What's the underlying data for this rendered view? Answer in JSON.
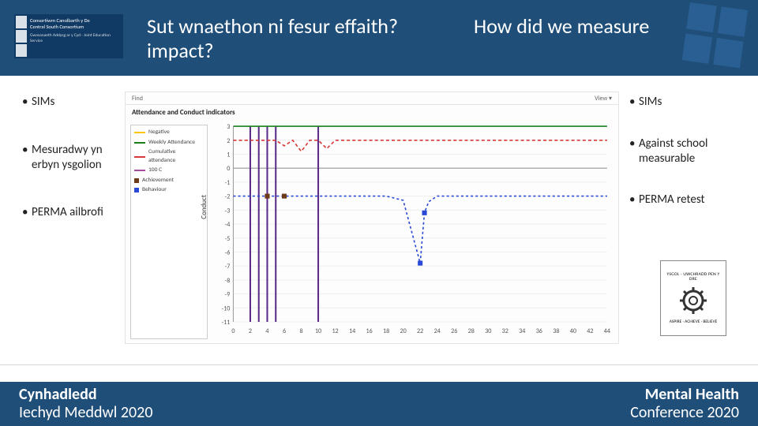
{
  "header": {
    "logo": {
      "line1": "Consortiwm Canolbarth y De",
      "line2": "Central South Consortium",
      "sub": "Gwasanaeth Addysg ar y Cyd · Joint Education Service"
    },
    "title_cy": "Sut wnaethon ni fesur effaith? impact?",
    "title_en": "How did we measure",
    "squares_color": "#2a5f93",
    "bg": "#1f4e79"
  },
  "left_bullets": [
    "SIMs",
    "Mesuradwy yn erbyn ysgolion",
    "PERMA ailbrofi"
  ],
  "right_bullets": [
    "SIMs",
    "Against school measurable",
    "PERMA retest"
  ],
  "chart": {
    "toolbar": {
      "left": "Find",
      "right": "View ▾"
    },
    "title": "Attendance and Conduct indicators",
    "ylabel": "Conduct",
    "type": "line",
    "xlim": [
      0,
      44
    ],
    "xtick_step": 2,
    "ylim": [
      -11,
      3
    ],
    "ytick_step": 1,
    "background_color": "#ffffff",
    "grid_color": "#eeeeee",
    "line_width": 1.6,
    "colors": {
      "negative": "#f8c300",
      "weekly_att": "#1a7f1a",
      "cum_att": "#d63a3a",
      "100c": "#a34aa3",
      "achieve": "#6b3b1a",
      "behave": "#2a4ad6"
    },
    "legend": [
      {
        "label": "Negative",
        "key": "negative",
        "style": "line"
      },
      {
        "label": "Weekly Attendance",
        "key": "weekly_att",
        "style": "line"
      },
      {
        "label": "Cumulative attendance",
        "key": "cum_att",
        "style": "line"
      },
      {
        "label": "100 C",
        "key": "100c",
        "style": "line"
      },
      {
        "label": "Achievement",
        "key": "achieve",
        "style": "square"
      },
      {
        "label": "Behaviour",
        "key": "behave",
        "style": "square"
      }
    ],
    "verticals_x": [
      2,
      3,
      4,
      5,
      10
    ],
    "verticals_color": "#5b2a86",
    "series": {
      "weekly_att": [
        [
          0,
          3
        ],
        [
          2,
          3
        ],
        [
          3,
          3
        ],
        [
          4,
          3
        ],
        [
          5,
          3
        ],
        [
          10,
          3
        ],
        [
          12,
          3
        ],
        [
          14,
          3
        ],
        [
          16,
          3
        ],
        [
          18,
          3
        ],
        [
          20,
          3
        ],
        [
          22,
          3
        ],
        [
          24,
          3
        ],
        [
          26,
          3
        ],
        [
          28,
          3
        ],
        [
          30,
          3
        ],
        [
          32,
          3
        ],
        [
          34,
          3
        ],
        [
          36,
          3
        ],
        [
          38,
          3
        ],
        [
          40,
          3
        ],
        [
          42,
          3
        ],
        [
          44,
          3
        ]
      ],
      "cum_att": [
        [
          0,
          2
        ],
        [
          2,
          2
        ],
        [
          3,
          2
        ],
        [
          4,
          2
        ],
        [
          5,
          2
        ],
        [
          6,
          1.6
        ],
        [
          7,
          2
        ],
        [
          8,
          1.2
        ],
        [
          9,
          2
        ],
        [
          10,
          2
        ],
        [
          11,
          1.4
        ],
        [
          12,
          2
        ],
        [
          13,
          2
        ],
        [
          14,
          2
        ],
        [
          16,
          2
        ],
        [
          18,
          2
        ],
        [
          20,
          2
        ],
        [
          22,
          2
        ],
        [
          24,
          2
        ],
        [
          26,
          2
        ],
        [
          28,
          2
        ],
        [
          30,
          2
        ],
        [
          32,
          2
        ],
        [
          34,
          2
        ],
        [
          36,
          2
        ],
        [
          38,
          2
        ],
        [
          40,
          2
        ],
        [
          42,
          2
        ],
        [
          44,
          2
        ]
      ],
      "behave": [
        [
          0,
          -2
        ],
        [
          2,
          -2
        ],
        [
          4,
          -2
        ],
        [
          6,
          -2
        ],
        [
          8,
          -2
        ],
        [
          10,
          -2
        ],
        [
          12,
          -2
        ],
        [
          14,
          -2
        ],
        [
          16,
          -2
        ],
        [
          18,
          -2
        ],
        [
          20,
          -2.3
        ],
        [
          22,
          -6.8
        ],
        [
          22.5,
          -3.2
        ],
        [
          23,
          -2.4
        ],
        [
          24,
          -2
        ],
        [
          26,
          -2
        ],
        [
          28,
          -2
        ],
        [
          30,
          -2
        ],
        [
          32,
          -2
        ],
        [
          34,
          -2
        ],
        [
          36,
          -2
        ],
        [
          38,
          -2
        ],
        [
          40,
          -2
        ],
        [
          42,
          -2
        ],
        [
          44,
          -2
        ]
      ]
    },
    "points": {
      "achieve": [
        [
          4,
          -2
        ],
        [
          6,
          -2
        ]
      ],
      "behave_markers": [
        [
          22,
          -6.8
        ],
        [
          22.5,
          -3.2
        ]
      ]
    }
  },
  "crest": {
    "top": "YSGOL · UWCHRADD PEN Y DRE",
    "bottom": "ASPIRE · ACHIEVE · BELIEVE"
  },
  "footer": {
    "left_bold": "Cynhadledd",
    "left_light": "Iechyd Meddwl 2020",
    "right_bold": "Mental Health",
    "right_light": "Conference 2020"
  }
}
